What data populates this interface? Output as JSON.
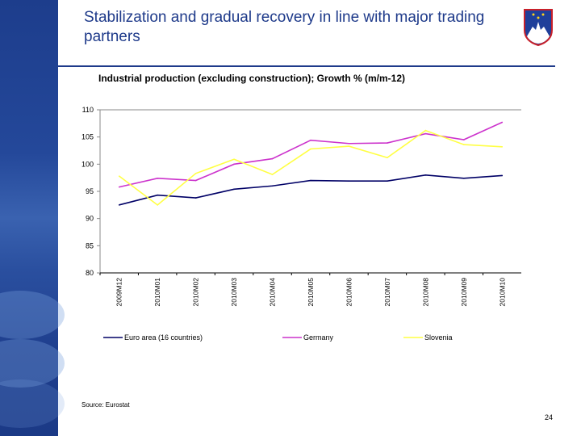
{
  "slide": {
    "title": "Stabilization and gradual recovery in line with major trading partners",
    "source": "Source: Eurostat",
    "page_number": "24",
    "logo": "slovenia-coat-of-arms"
  },
  "chart_data": {
    "type": "line",
    "title": "Industrial production (excluding construction); Growth % (m/m-12)",
    "xlabel": "",
    "ylabel": "",
    "ylim": [
      80,
      110
    ],
    "yticks": [
      80,
      85,
      90,
      95,
      100,
      105,
      110
    ],
    "grid": false,
    "legend_position": "bottom",
    "categories": [
      "2009M12",
      "2010M01",
      "2010M02",
      "2010M03",
      "2010M04",
      "2010M05",
      "2010M06",
      "2010M07",
      "2010M08",
      "2010M09",
      "2010M10"
    ],
    "series": [
      {
        "name": "Euro area (16 countries)",
        "color": "#000066",
        "values": [
          92.5,
          94.3,
          93.8,
          95.4,
          96.0,
          97.0,
          96.9,
          96.9,
          98.0,
          97.4,
          97.9
        ]
      },
      {
        "name": "Germany",
        "color": "#cc33cc",
        "values": [
          95.8,
          97.4,
          97.0,
          100.0,
          101.0,
          104.4,
          103.8,
          103.9,
          105.6,
          104.5,
          107.7
        ]
      },
      {
        "name": "Slovenia",
        "color": "#ffff44",
        "values": [
          97.8,
          92.5,
          98.3,
          100.9,
          98.1,
          102.8,
          103.3,
          101.2,
          106.2,
          103.6,
          103.2
        ]
      }
    ]
  }
}
